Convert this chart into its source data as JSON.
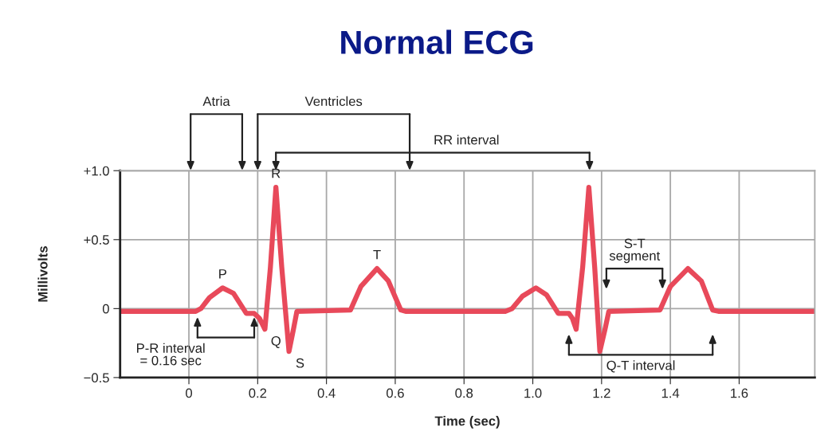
{
  "chart_data": {
    "type": "line",
    "title": "Normal ECG",
    "xlabel": "Time (sec)",
    "ylabel": "Millivolts",
    "x": [
      -0.2,
      0.02,
      0.035,
      0.06,
      0.098,
      0.13,
      0.167,
      0.19,
      0.205,
      0.221,
      0.237,
      0.253,
      0.27,
      0.291,
      0.304,
      0.314,
      0.47,
      0.5,
      0.547,
      0.58,
      0.616,
      0.63,
      0.92,
      0.94,
      0.97,
      1.009,
      1.04,
      1.074,
      1.105,
      1.115,
      1.126,
      1.145,
      1.163,
      1.18,
      1.195,
      1.21,
      1.221,
      1.37,
      1.4,
      1.451,
      1.49,
      1.523,
      1.54,
      1.82
    ],
    "series": [
      {
        "color": "#e8495a",
        "values": [
          -0.02,
          -0.02,
          0.0,
          0.08,
          0.15,
          0.11,
          -0.035,
          -0.035,
          -0.07,
          -0.15,
          0.3,
          0.88,
          0.3,
          -0.31,
          -0.15,
          -0.02,
          -0.01,
          0.16,
          0.29,
          0.2,
          -0.01,
          -0.02,
          -0.02,
          0.0,
          0.09,
          0.15,
          0.1,
          -0.035,
          -0.035,
          -0.07,
          -0.15,
          0.3,
          0.88,
          0.3,
          -0.31,
          -0.15,
          -0.02,
          -0.01,
          0.16,
          0.29,
          0.2,
          -0.01,
          -0.02,
          -0.02
        ]
      }
    ],
    "xlim": [
      -0.2,
      1.82
    ],
    "ylim": [
      -0.5,
      1.0
    ],
    "xticks": [
      0,
      0.2,
      0.4,
      0.6,
      0.8,
      {
        "value": 1.0,
        "label": "1.0"
      },
      1.2,
      1.4,
      1.6
    ],
    "yticks": [
      {
        "value": -0.5,
        "label": "−0.5"
      },
      0,
      {
        "value": 0.5,
        "label": "+0.5"
      },
      {
        "value": 1.0,
        "label": "+1.0"
      }
    ],
    "grid": true,
    "marker": "none",
    "line_style": "solid",
    "annotations": [
      {
        "text": "P",
        "x": 0.098,
        "y": 0.15
      },
      {
        "text": "Q",
        "x": 0.221,
        "y": -0.15
      },
      {
        "text": "R",
        "x": 0.253,
        "y": 0.88
      },
      {
        "text": "S",
        "x": 0.291,
        "y": -0.31
      },
      {
        "text": "T",
        "x": 0.547,
        "y": 0.29
      },
      "Atria",
      "Ventricles",
      "RR interval",
      "S-T\nsegment",
      "P-R interval\n= 0.16 sec",
      "Q-T interval"
    ]
  }
}
